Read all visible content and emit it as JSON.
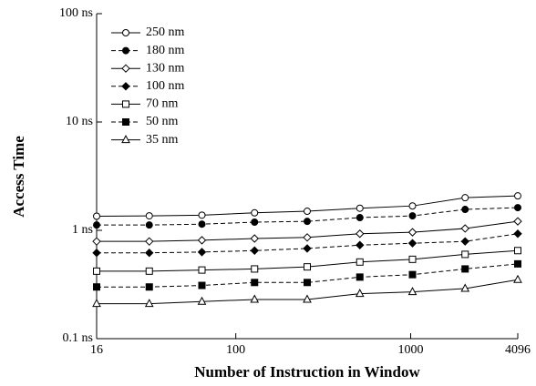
{
  "chart_data": {
    "type": "line",
    "xlabel": "Number of Instruction in Window",
    "ylabel": "Access Time",
    "xscale": "log",
    "yscale": "log",
    "x": [
      16,
      32,
      64,
      128,
      256,
      512,
      1024,
      2048,
      4096
    ],
    "xlim": [
      16,
      4096
    ],
    "xticks": [
      16,
      100,
      1000,
      4096
    ],
    "ylim": [
      0.1,
      100
    ],
    "yticks": [
      {
        "value": 0.1,
        "label": "0.1 ns"
      },
      {
        "value": 1,
        "label": "1 ns"
      },
      {
        "value": 10,
        "label": "10 ns"
      },
      {
        "value": 100,
        "label": "100 ns"
      }
    ],
    "legend": "upper left",
    "series": [
      {
        "name": "250 nm",
        "color": "#000000",
        "dashed": false,
        "marker": "circle",
        "filled": false,
        "values": [
          1.35,
          1.36,
          1.38,
          1.45,
          1.5,
          1.6,
          1.68,
          2.0,
          2.08
        ]
      },
      {
        "name": "180 nm",
        "color": "#000000",
        "dashed": true,
        "marker": "circle",
        "filled": true,
        "values": [
          1.12,
          1.12,
          1.14,
          1.19,
          1.21,
          1.31,
          1.36,
          1.56,
          1.62
        ]
      },
      {
        "name": "130 nm",
        "color": "#000000",
        "dashed": false,
        "marker": "diamond",
        "filled": false,
        "values": [
          0.79,
          0.79,
          0.81,
          0.84,
          0.86,
          0.93,
          0.96,
          1.04,
          1.21
        ]
      },
      {
        "name": "100 nm",
        "color": "#000000",
        "dashed": true,
        "marker": "diamond",
        "filled": true,
        "values": [
          0.62,
          0.62,
          0.63,
          0.65,
          0.68,
          0.73,
          0.76,
          0.79,
          0.93
        ]
      },
      {
        "name": "70 nm",
        "color": "#000000",
        "dashed": false,
        "marker": "square",
        "filled": false,
        "values": [
          0.42,
          0.42,
          0.43,
          0.44,
          0.46,
          0.51,
          0.54,
          0.6,
          0.65
        ]
      },
      {
        "name": "50 nm",
        "color": "#000000",
        "dashed": true,
        "marker": "square",
        "filled": true,
        "values": [
          0.3,
          0.3,
          0.31,
          0.33,
          0.33,
          0.37,
          0.39,
          0.44,
          0.49
        ]
      },
      {
        "name": "35 nm",
        "color": "#000000",
        "dashed": false,
        "marker": "triangle",
        "filled": false,
        "values": [
          0.21,
          0.21,
          0.22,
          0.23,
          0.23,
          0.26,
          0.27,
          0.29,
          0.35
        ]
      }
    ]
  }
}
